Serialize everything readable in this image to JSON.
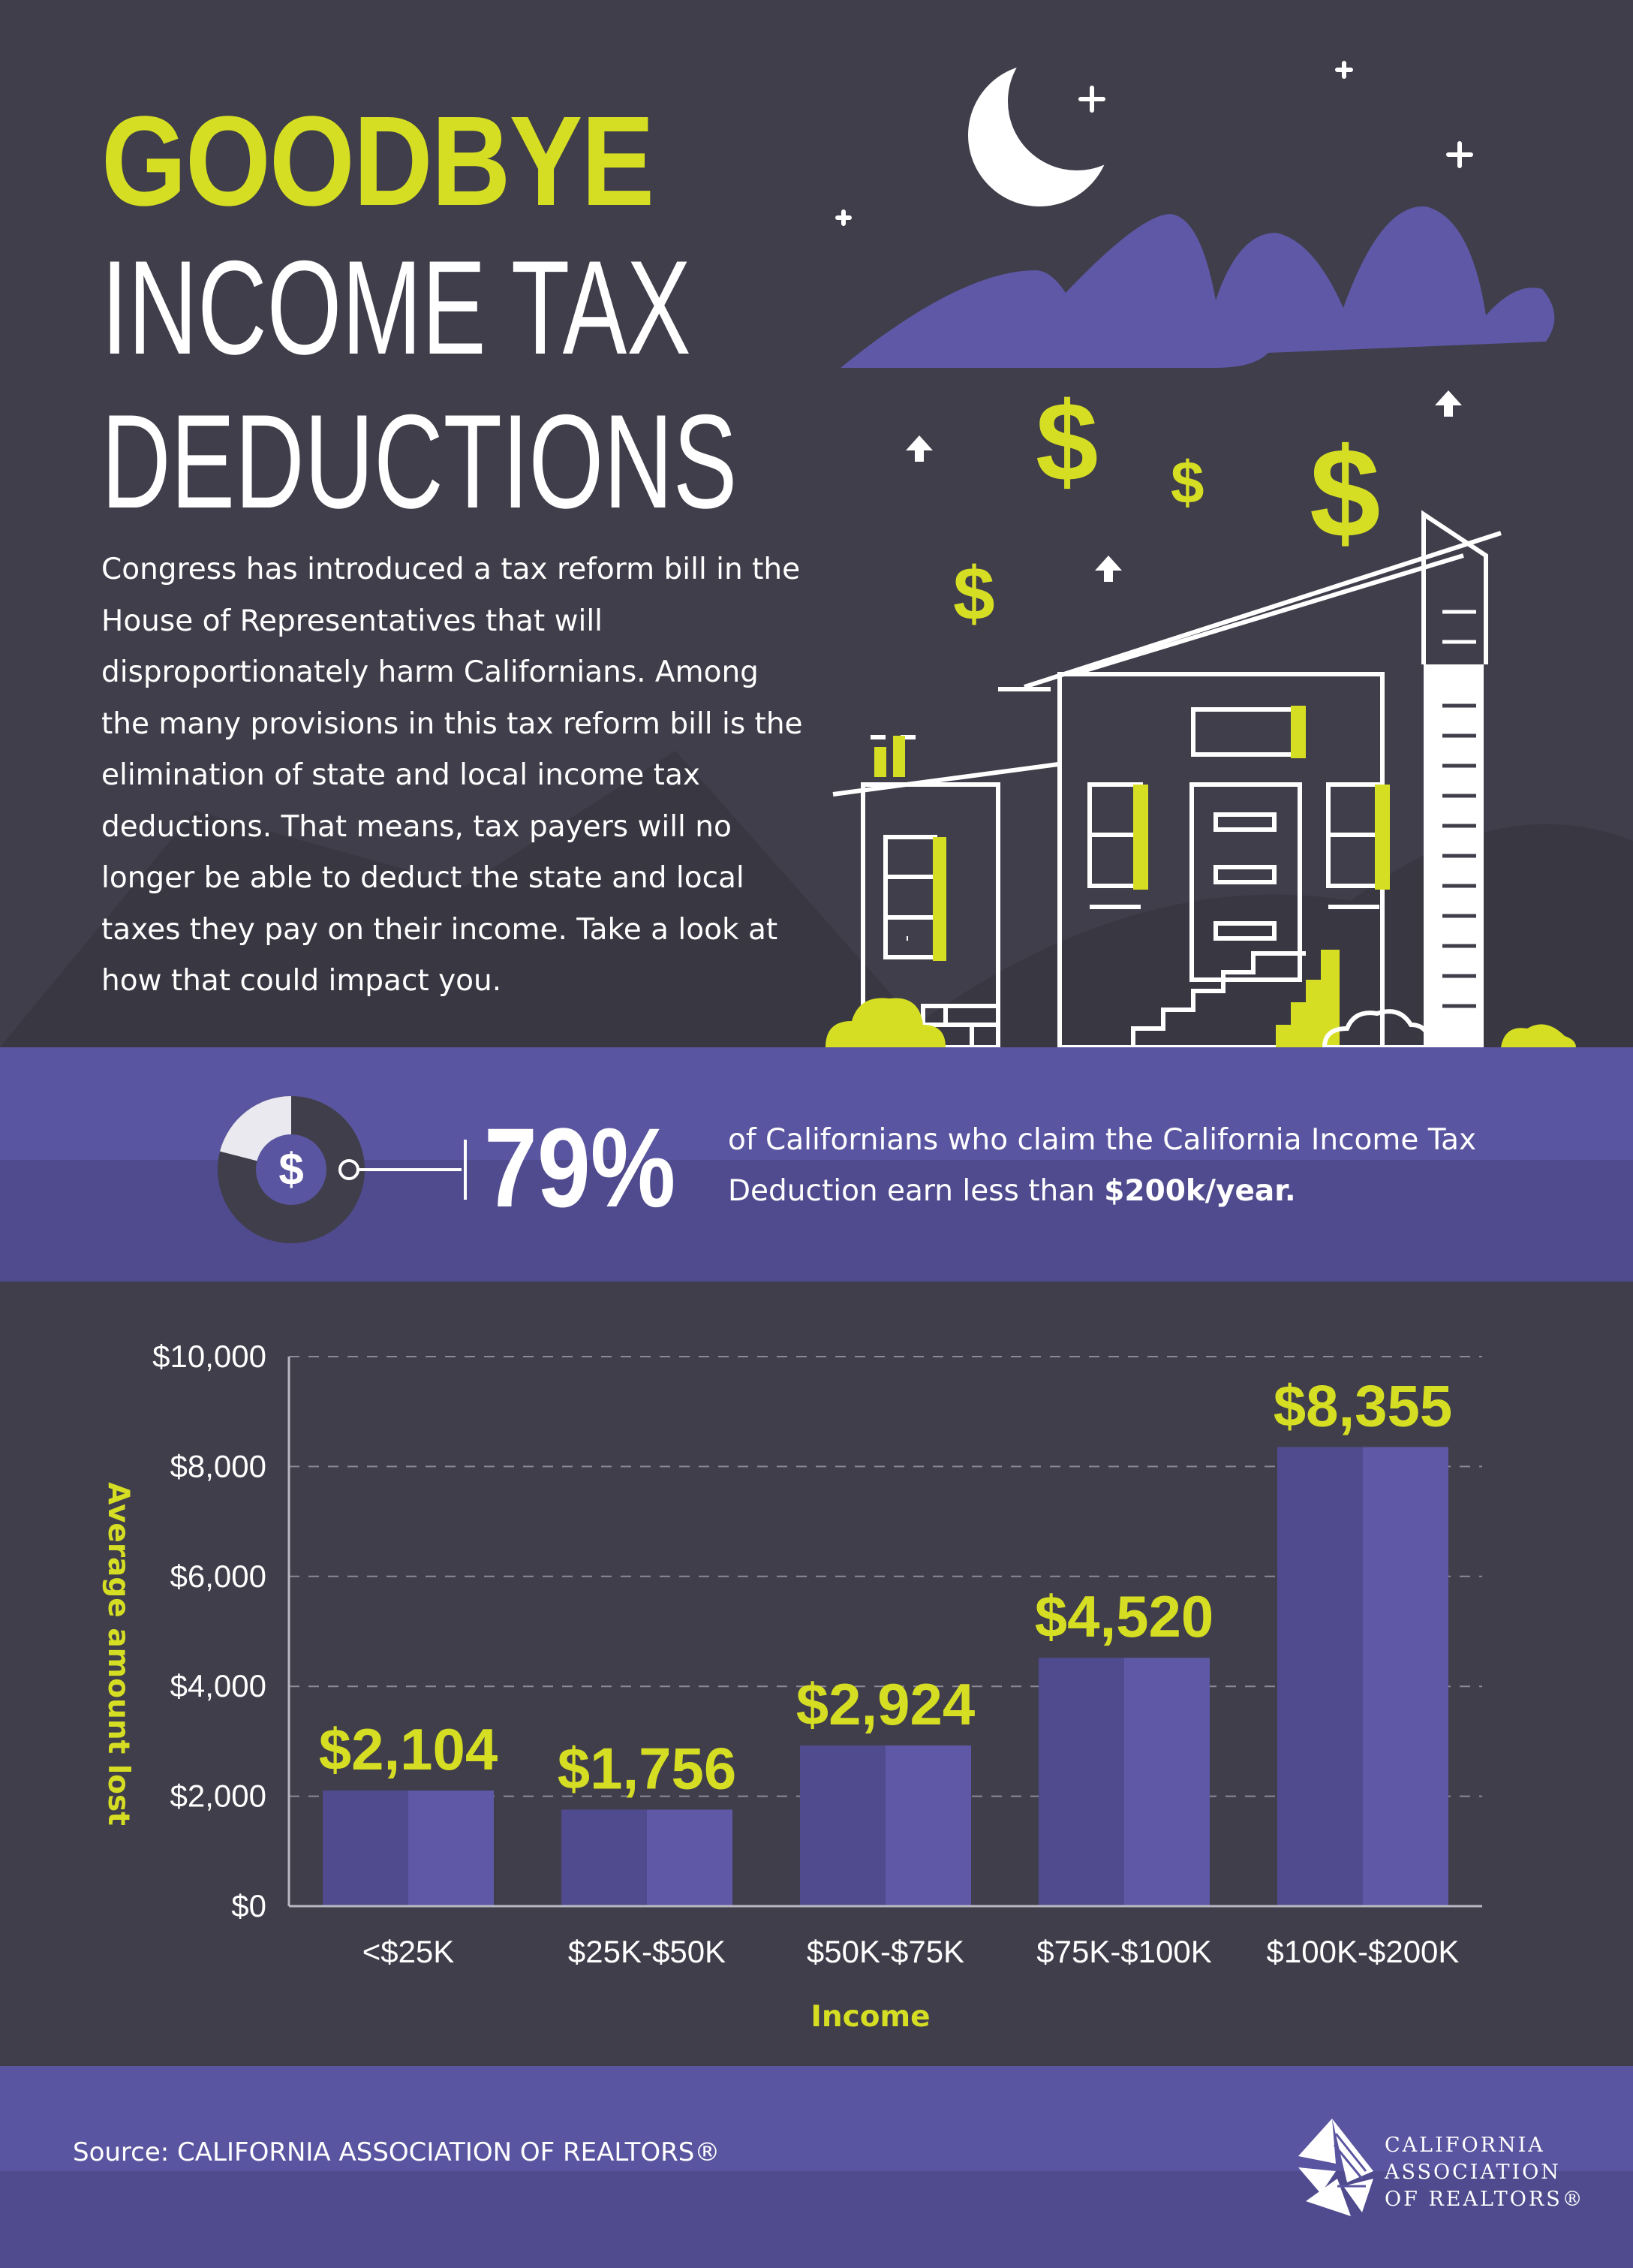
{
  "header": {
    "title_goodbye": "GOODBYE",
    "title_line1": "INCOME TAX",
    "title_line2": "DEDUCTIONS",
    "intro": "Congress has introduced a tax reform bill in the House of Representatives that will disproportionately harm Californians. Among the many provisions in this tax reform bill is the elimination of state and local income tax deductions. That means, tax payers will no longer be able to deduct the state and local taxes they pay on their income. Take a look at how that could impact you."
  },
  "stat": {
    "percent": "79%",
    "percent_value": 79,
    "icon_symbol": "$",
    "text": "of Californians who claim the California Income Tax Deduction earn less than",
    "highlight": "$200k/year."
  },
  "chart_data": {
    "type": "bar",
    "categories": [
      "<$25K",
      "$25K-$50K",
      "$50K-$75K",
      "$75K-$100K",
      "$100K-$200K"
    ],
    "values": [
      2104,
      1756,
      2924,
      4520,
      8355
    ],
    "value_labels": [
      "$2,104",
      "$1,756",
      "$2,924",
      "$4,520",
      "$8,355"
    ],
    "xlabel": "Income",
    "ylabel": "Average amount lost",
    "ylim": [
      0,
      10000
    ],
    "yticks": [
      0,
      2000,
      4000,
      6000,
      8000,
      10000
    ],
    "ytick_labels": [
      "$0",
      "$2,000",
      "$4,000",
      "$6,000",
      "$8,000",
      "$10,000"
    ],
    "grid": true,
    "colors": {
      "bar_dark": "#4f4b8e",
      "bar_light": "#5e58a6",
      "label": "#d6de23",
      "tick": "#ffffff",
      "grid": "#8a8a96"
    }
  },
  "footer": {
    "source": "Source: CALIFORNIA ASSOCIATION OF REALTORS®",
    "logo_lines": [
      "CALIFORNIA",
      "ASSOCIATION",
      "OF REALTORS®"
    ]
  },
  "colors": {
    "background": "#3f3e4a",
    "accent_yellow": "#d6de23",
    "purple": "#5a55a0",
    "purple_dark": "#4f4b8e"
  },
  "icons": [
    "moon-icon",
    "cloud-icon",
    "dollar-icon",
    "arrow-up-icon",
    "star-icon",
    "house-icon",
    "pie-dollar-icon",
    "realtor-logo-icon"
  ]
}
